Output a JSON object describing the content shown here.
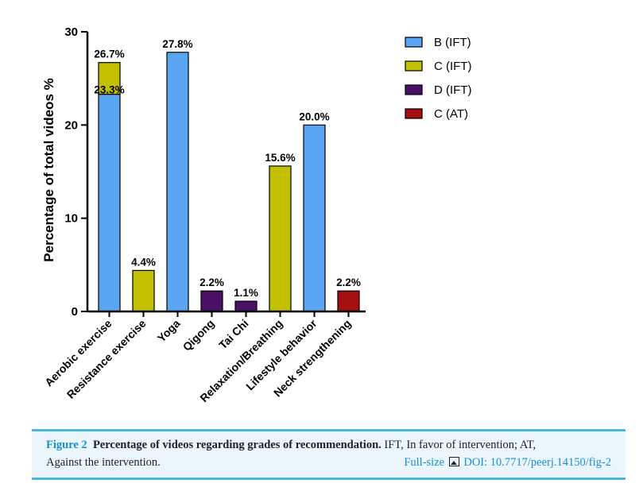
{
  "chart_data": {
    "type": "bar",
    "ylabel": "Percentage of total videos %",
    "xlabel": "",
    "ylim": [
      0,
      30
    ],
    "yticks": [
      0,
      10,
      20,
      30
    ],
    "categories": [
      "Aerobic exercise",
      "Resistance exercise",
      "Yoga",
      "Qigong",
      "Tai Chi",
      "Relaxation/Breathing",
      "Lifestyle behavior",
      "Neck strengthening"
    ],
    "series": [
      {
        "name": "B (IFT)",
        "color": "#5ba6f2",
        "values": [
          23.3,
          0,
          27.8,
          0,
          0,
          0,
          20.0,
          0
        ]
      },
      {
        "name": "C (IFT)",
        "color": "#c2c000",
        "values": [
          3.4,
          4.4,
          0,
          0,
          0,
          15.6,
          0,
          0
        ]
      },
      {
        "name": "D (IFT)",
        "color": "#4a1065",
        "values": [
          0,
          0,
          0,
          2.2,
          1.1,
          0,
          0,
          0
        ]
      },
      {
        "name": "C (AT)",
        "color": "#a50f0f",
        "values": [
          0,
          0,
          0,
          0,
          0,
          0,
          0,
          2.2
        ]
      }
    ],
    "data_labels": [
      {
        "category": 0,
        "value": 26.7,
        "text": "26.7%"
      },
      {
        "category": 0,
        "value": 23.3,
        "text": "23.3%",
        "inside": true
      },
      {
        "category": 1,
        "value": 4.4,
        "text": "4.4%"
      },
      {
        "category": 2,
        "value": 27.8,
        "text": "27.8%"
      },
      {
        "category": 3,
        "value": 2.2,
        "text": "2.2%"
      },
      {
        "category": 4,
        "value": 1.1,
        "text": "1.1%"
      },
      {
        "category": 5,
        "value": 15.6,
        "text": "15.6%"
      },
      {
        "category": 6,
        "value": 20.0,
        "text": "20.0%"
      },
      {
        "category": 7,
        "value": 2.2,
        "text": "2.2%"
      }
    ],
    "legend_position": "top-right",
    "grid": false
  },
  "caption": {
    "figure_label": "Figure 2",
    "title": "Percentage of videos regarding grades of recommendation.",
    "text_line1": "IFT, In favor of intervention; AT,",
    "text_line2": "Against the intervention.",
    "fullsize_label": "Full-size",
    "doi": "DOI: 10.7717/peerj.14150/fig-2"
  }
}
